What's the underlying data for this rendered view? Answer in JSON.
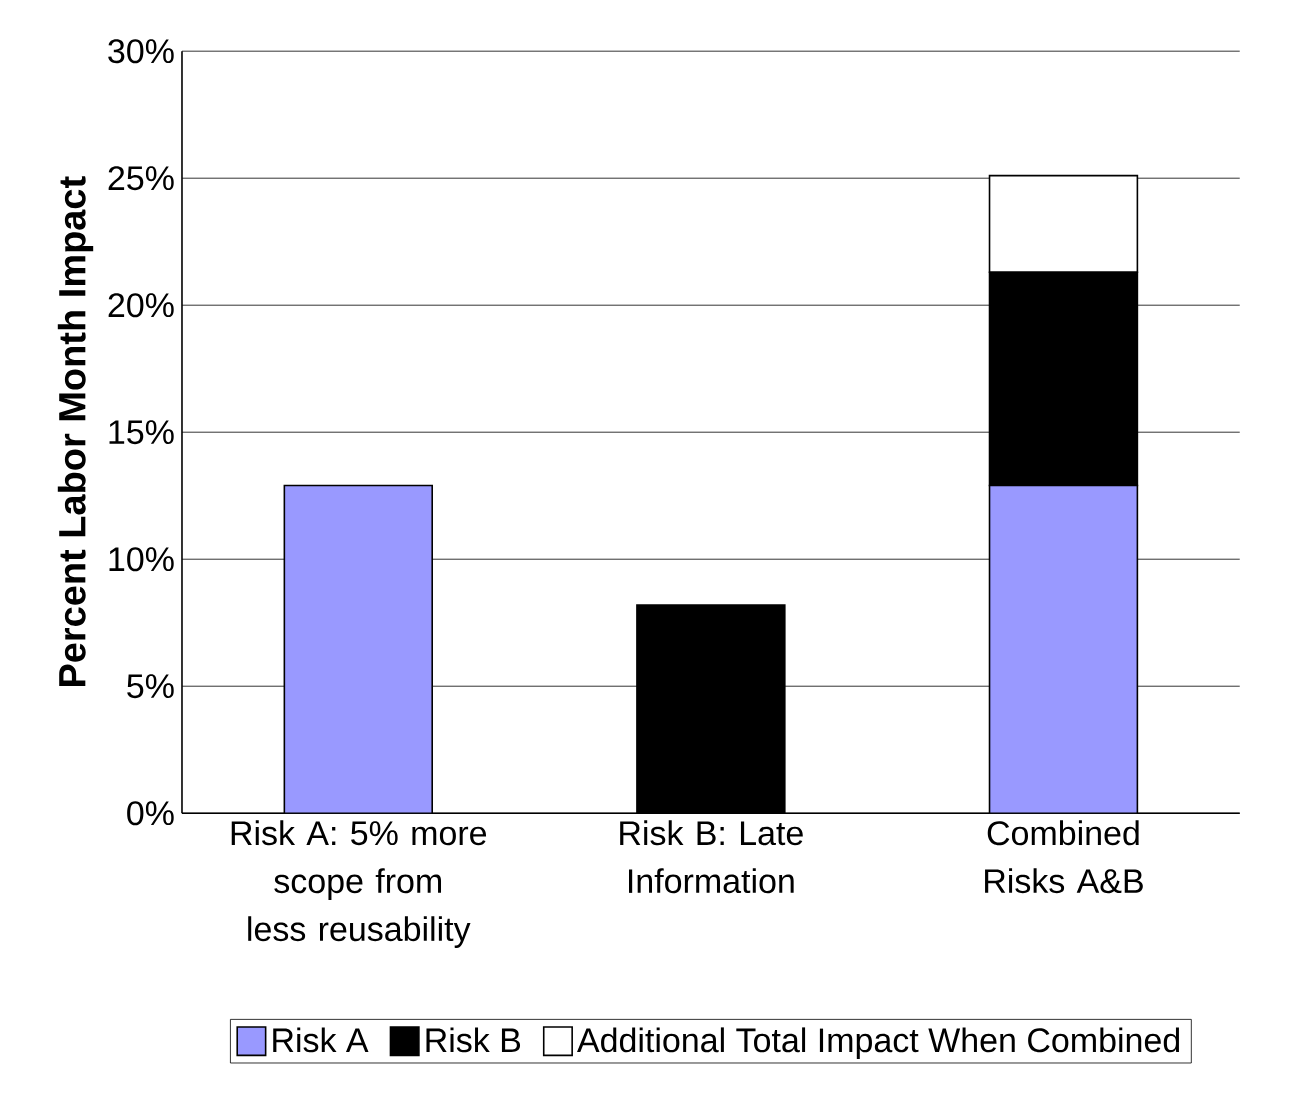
{
  "chart_data": {
    "type": "bar",
    "stacked": true,
    "ylabel": "Percent Labor Month Impact",
    "categories": [
      "Risk A: 5% more scope from less reusability",
      "Risk B: Late Information",
      "Combined Risks A&B"
    ],
    "series": [
      {
        "name": "Risk A",
        "color": "#9999ff",
        "values": [
          12.9,
          0,
          12.9
        ]
      },
      {
        "name": "Risk B",
        "color": "#000000",
        "values": [
          0,
          8.2,
          8.4
        ]
      },
      {
        "name": "Additional Total Impact When Combined",
        "color": "#ffffff",
        "values": [
          0,
          0,
          3.8
        ]
      }
    ],
    "ylim": [
      0,
      30
    ],
    "yticks": [
      {
        "value": 0,
        "label": "0%"
      },
      {
        "value": 5,
        "label": "5%"
      },
      {
        "value": 10,
        "label": "10%"
      },
      {
        "value": 15,
        "label": "15%"
      },
      {
        "value": 20,
        "label": "20%"
      },
      {
        "value": 25,
        "label": "25%"
      },
      {
        "value": 30,
        "label": "30%"
      }
    ],
    "grid": "y",
    "legend": "bottom"
  }
}
